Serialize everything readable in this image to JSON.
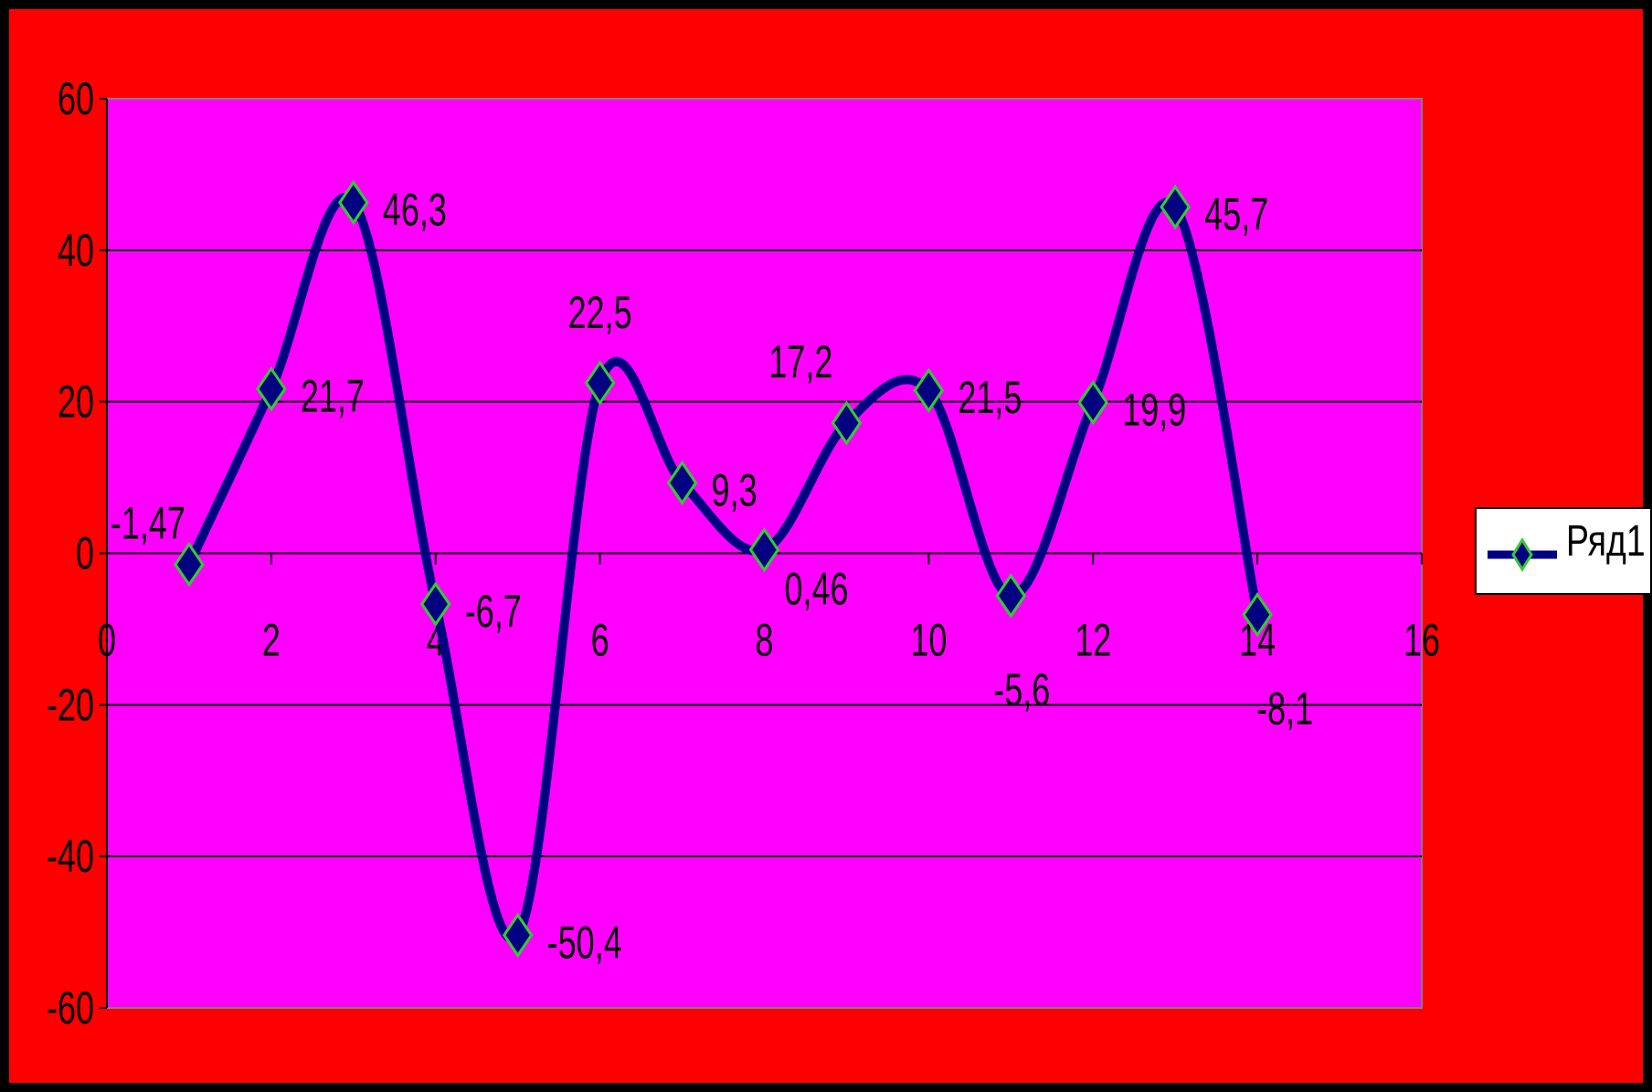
{
  "colors": {
    "background": "#FF0000",
    "plot_area": "#FF00FF",
    "line": "#000080",
    "marker_fill": "#000080",
    "marker_border": "#33CC33",
    "gridline": "#000000",
    "text": "#000000"
  },
  "legend": {
    "label": "Ряд1",
    "position": "right",
    "icon": "diamond-line-marker-icon"
  },
  "chart_data": {
    "type": "scatter",
    "subtype": "smooth-line-with-markers",
    "title": "",
    "xlabel": "",
    "ylabel": "",
    "xlim": [
      0,
      16
    ],
    "ylim": [
      -60,
      60
    ],
    "x_ticks": [
      0,
      2,
      4,
      6,
      8,
      10,
      12,
      14,
      16
    ],
    "y_ticks": [
      -60,
      -40,
      -20,
      0,
      20,
      40,
      60
    ],
    "grid": "horizontal major",
    "legend_position": "right",
    "series": [
      {
        "name": "Ряд1",
        "x": [
          1,
          2,
          3,
          4,
          5,
          6,
          7,
          8,
          9,
          10,
          11,
          12,
          13,
          14
        ],
        "y": [
          -1.47,
          21.7,
          46.3,
          -6.7,
          -50.4,
          22.5,
          9.3,
          0.46,
          17.2,
          21.5,
          -5.6,
          19.9,
          45.7,
          -8.1
        ],
        "data_labels": [
          "-1,47",
          "21,7",
          "46,3",
          "-6,7",
          "-50,4",
          "22,5",
          "9,3",
          "0,46",
          "17,2",
          "21,5",
          "-5,6",
          "19,9",
          "45,7",
          "-8,1"
        ]
      }
    ]
  }
}
